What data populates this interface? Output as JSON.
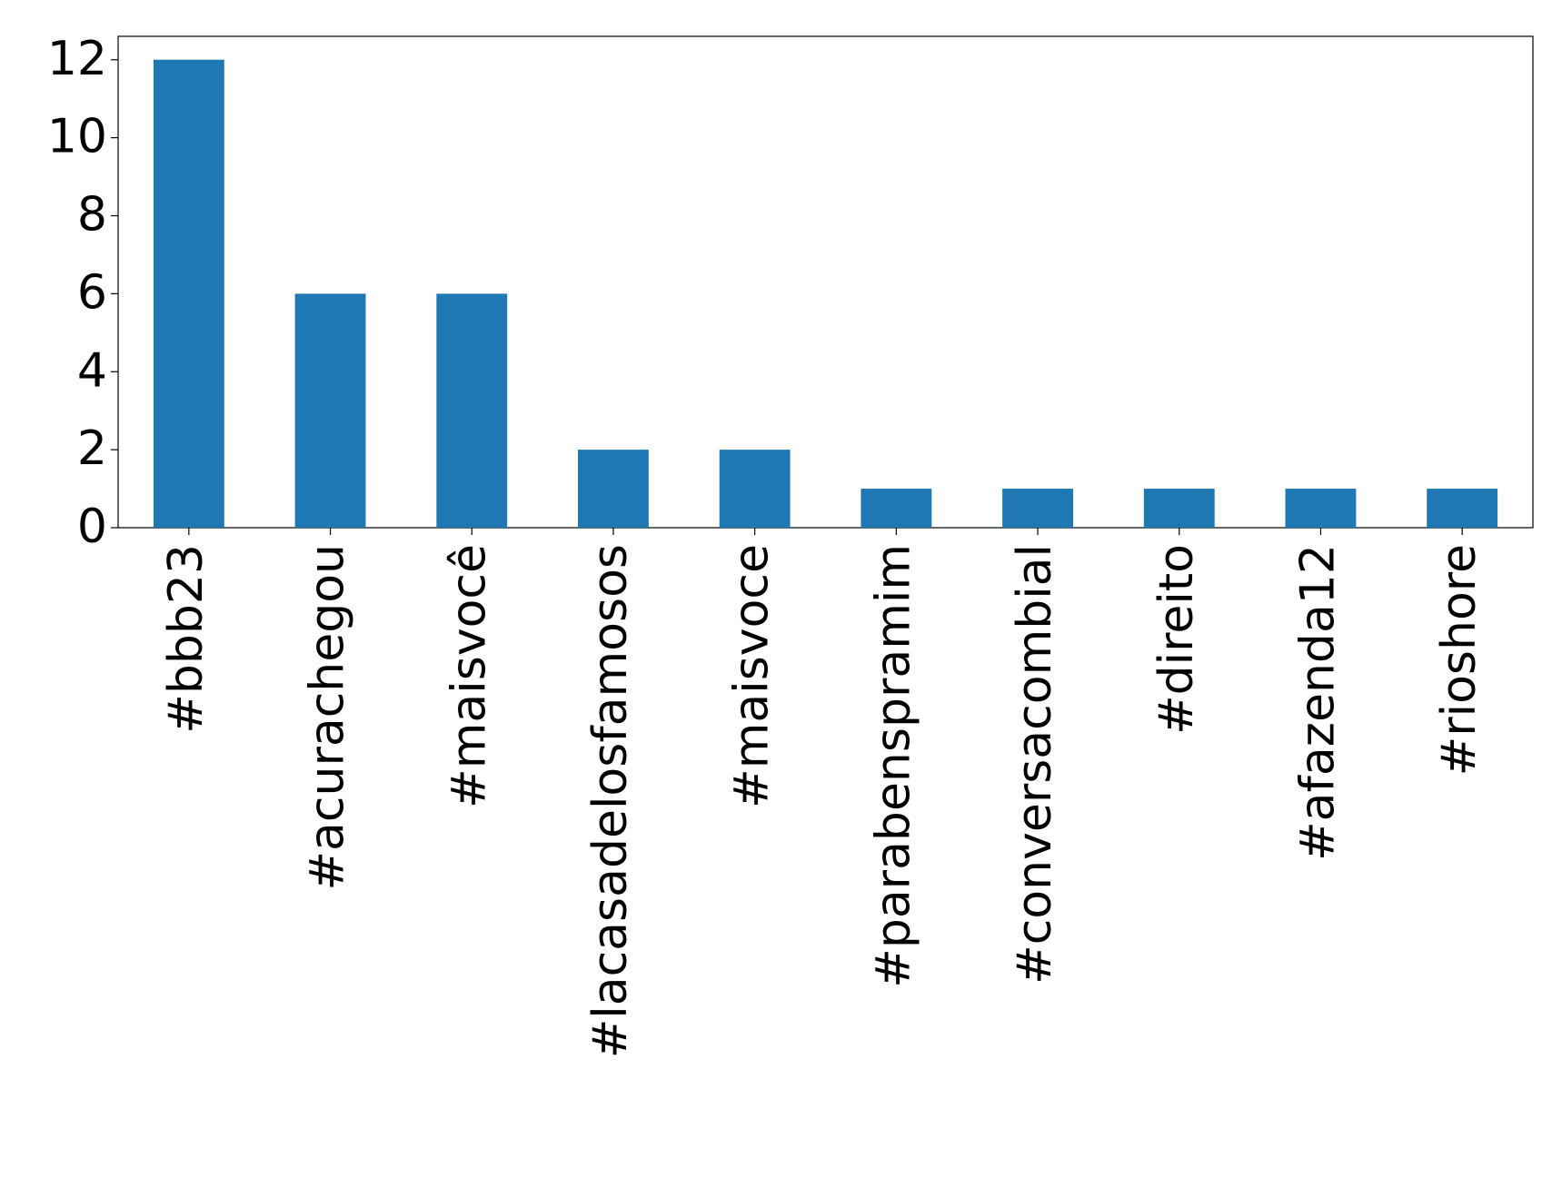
{
  "chart_data": {
    "type": "bar",
    "categories": [
      "#bbb23",
      "#acurachegou",
      "#maisvocê",
      "#lacasadelosfamosos",
      "#maisvoce",
      "#parabenspramim",
      "#conversacombial",
      "#direito",
      "#afazenda12",
      "#rioshore"
    ],
    "values": [
      12,
      6,
      6,
      2,
      2,
      1,
      1,
      1,
      1,
      1
    ],
    "color": "#1f77b4",
    "ylim": [
      0,
      12.6
    ],
    "yticks": [
      0,
      2,
      4,
      6,
      8,
      10,
      12
    ],
    "grid": false
  }
}
